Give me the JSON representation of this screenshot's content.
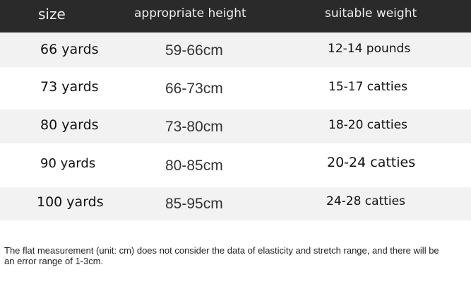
{
  "header": {
    "size": "size",
    "height": "appropriate height",
    "weight": "suitable weight"
  },
  "rows": [
    {
      "size": "66 yards",
      "height": "59-66cm",
      "weight": "12-14 pounds"
    },
    {
      "size": "73 yards",
      "height": "66-73cm",
      "weight": "15-17 catties"
    },
    {
      "size": "80 yards",
      "height": "73-80cm",
      "weight": "18-20 catties"
    },
    {
      "size": "90 yards",
      "height": "80-85cm",
      "weight": "20-24 catties"
    },
    {
      "size": "100 yards",
      "height": "85-95cm",
      "weight": "24-28 catties"
    }
  ],
  "note": "The flat measurement (unit: cm) does not consider the data of elasticity and stretch range, and there will be an error range of 1-3cm.",
  "colors": {
    "header_bg": "#2a2a2a",
    "stripe": "#f2f2f2"
  }
}
